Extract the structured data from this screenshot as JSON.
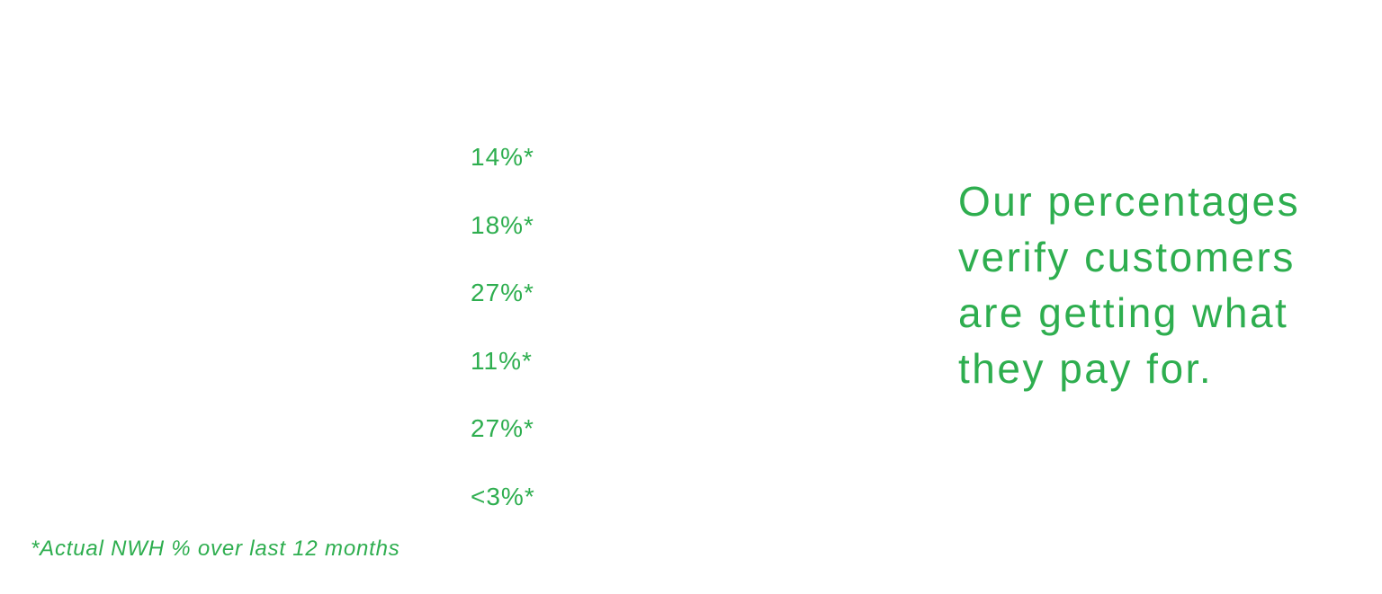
{
  "stats": [
    "14%*",
    "18%*",
    "27%*",
    "11%*",
    "27%*",
    "<3%*"
  ],
  "headline": [
    "Our percentages",
    "verify customers",
    "are getting what",
    "they pay for."
  ],
  "footnote": "*Actual NWH % over last 12 months"
}
